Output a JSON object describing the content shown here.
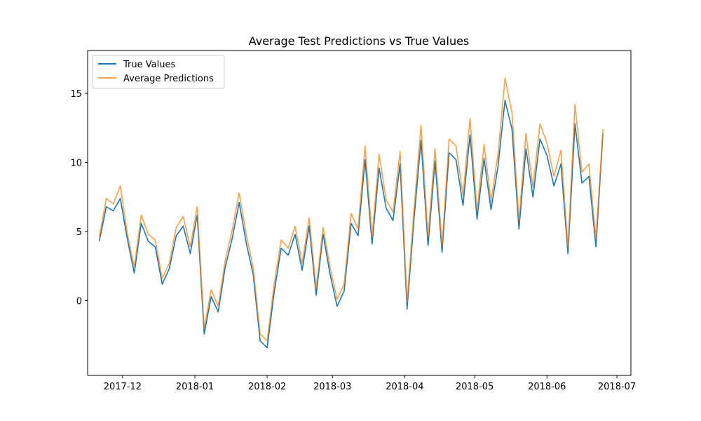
{
  "chart_data": {
    "type": "line",
    "title": "Average Test Predictions vs True Values",
    "xlabel": "",
    "ylabel": "",
    "x_axis_type": "date",
    "xlim": [
      "2017-11-16",
      "2018-07-07"
    ],
    "ylim": [
      -5.4,
      18.1
    ],
    "x_ticks": [
      "2017-12-01",
      "2018-01-01",
      "2018-02-01",
      "2018-03-01",
      "2018-04-01",
      "2018-05-01",
      "2018-06-01",
      "2018-07-01"
    ],
    "x_tick_labels": [
      "2017-12",
      "2018-01",
      "2018-02",
      "2018-03",
      "2018-04",
      "2018-05",
      "2018-06",
      "2018-07"
    ],
    "y_ticks": [
      0,
      5,
      10,
      15
    ],
    "y_tick_labels": [
      "0",
      "5",
      "10",
      "15"
    ],
    "grid": false,
    "legend_position": "top-left",
    "series": [
      {
        "name": "True Values",
        "color": "#1f77b4",
        "opacity": 1.0,
        "x": [
          "2017-11-21",
          "2017-11-24",
          "2017-11-27",
          "2017-11-30",
          "2017-12-03",
          "2017-12-06",
          "2017-12-09",
          "2017-12-12",
          "2017-12-15",
          "2017-12-18",
          "2017-12-21",
          "2017-12-24",
          "2017-12-27",
          "2017-12-30",
          "2018-01-02",
          "2018-01-05",
          "2018-01-08",
          "2018-01-11",
          "2018-01-14",
          "2018-01-17",
          "2018-01-20",
          "2018-01-23",
          "2018-01-26",
          "2018-01-29",
          "2018-02-01",
          "2018-02-04",
          "2018-02-07",
          "2018-02-10",
          "2018-02-13",
          "2018-02-16",
          "2018-02-19",
          "2018-02-22",
          "2018-02-25",
          "2018-02-28",
          "2018-03-03",
          "2018-03-06",
          "2018-03-09",
          "2018-03-12",
          "2018-03-15",
          "2018-03-18",
          "2018-03-21",
          "2018-03-24",
          "2018-03-27",
          "2018-03-30",
          "2018-04-02",
          "2018-04-05",
          "2018-04-08",
          "2018-04-11",
          "2018-04-14",
          "2018-04-17",
          "2018-04-20",
          "2018-04-23",
          "2018-04-26",
          "2018-04-29",
          "2018-05-02",
          "2018-05-05",
          "2018-05-08",
          "2018-05-11",
          "2018-05-14",
          "2018-05-17",
          "2018-05-20",
          "2018-05-23",
          "2018-05-26",
          "2018-05-29",
          "2018-06-01",
          "2018-06-04",
          "2018-06-07",
          "2018-06-10",
          "2018-06-13",
          "2018-06-16",
          "2018-06-19",
          "2018-06-22",
          "2018-06-25"
        ],
        "values": [
          4.3,
          6.8,
          6.5,
          7.4,
          4.5,
          2.0,
          5.6,
          4.3,
          3.9,
          1.2,
          2.3,
          4.7,
          5.4,
          3.4,
          6.2,
          -2.4,
          0.3,
          -0.8,
          2.4,
          4.5,
          7.1,
          4.2,
          1.9,
          -2.9,
          -3.4,
          0.6,
          3.8,
          3.3,
          4.8,
          2.2,
          5.4,
          0.4,
          4.8,
          1.9,
          -0.4,
          0.7,
          5.6,
          4.7,
          10.2,
          4.1,
          9.6,
          6.7,
          5.8,
          9.9,
          -0.6,
          6.0,
          11.6,
          4.0,
          10.1,
          3.5,
          10.7,
          10.2,
          6.9,
          12.0,
          5.9,
          10.3,
          6.6,
          9.7,
          14.5,
          12.4,
          5.2,
          11.0,
          7.5,
          11.7,
          10.5,
          8.3,
          9.9,
          3.4,
          12.8,
          8.5,
          9.0,
          3.9,
          12.1
        ]
      },
      {
        "name": "Average Predictions",
        "color": "#ff7f0e",
        "opacity": 0.75,
        "x": [
          "2017-11-21",
          "2017-11-24",
          "2017-11-27",
          "2017-11-30",
          "2017-12-03",
          "2017-12-06",
          "2017-12-09",
          "2017-12-12",
          "2017-12-15",
          "2017-12-18",
          "2017-12-21",
          "2017-12-24",
          "2017-12-27",
          "2017-12-30",
          "2018-01-02",
          "2018-01-05",
          "2018-01-08",
          "2018-01-11",
          "2018-01-14",
          "2018-01-17",
          "2018-01-20",
          "2018-01-23",
          "2018-01-26",
          "2018-01-29",
          "2018-02-01",
          "2018-02-04",
          "2018-02-07",
          "2018-02-10",
          "2018-02-13",
          "2018-02-16",
          "2018-02-19",
          "2018-02-22",
          "2018-02-25",
          "2018-02-28",
          "2018-03-03",
          "2018-03-06",
          "2018-03-09",
          "2018-03-12",
          "2018-03-15",
          "2018-03-18",
          "2018-03-21",
          "2018-03-24",
          "2018-03-27",
          "2018-03-30",
          "2018-04-02",
          "2018-04-05",
          "2018-04-08",
          "2018-04-11",
          "2018-04-14",
          "2018-04-17",
          "2018-04-20",
          "2018-04-23",
          "2018-04-26",
          "2018-04-29",
          "2018-05-02",
          "2018-05-05",
          "2018-05-08",
          "2018-05-11",
          "2018-05-14",
          "2018-05-17",
          "2018-05-20",
          "2018-05-23",
          "2018-05-26",
          "2018-05-29",
          "2018-06-01",
          "2018-06-04",
          "2018-06-07",
          "2018-06-10",
          "2018-06-13",
          "2018-06-16",
          "2018-06-19",
          "2018-06-22",
          "2018-06-25"
        ],
        "values": [
          4.6,
          7.4,
          7.0,
          8.3,
          4.9,
          2.4,
          6.2,
          4.8,
          4.4,
          1.6,
          2.7,
          5.3,
          6.1,
          3.9,
          6.8,
          -2.0,
          0.8,
          -0.4,
          2.9,
          5.1,
          7.8,
          4.8,
          2.4,
          -2.4,
          -2.9,
          1.2,
          4.4,
          3.8,
          5.4,
          2.7,
          6.0,
          0.9,
          5.3,
          2.4,
          0.1,
          1.2,
          6.3,
          5.2,
          11.2,
          4.6,
          10.6,
          7.3,
          6.4,
          10.8,
          -0.1,
          6.7,
          12.7,
          4.6,
          11.0,
          4.0,
          11.7,
          11.2,
          7.6,
          13.2,
          6.5,
          11.3,
          7.2,
          10.6,
          16.1,
          13.6,
          5.8,
          12.1,
          8.2,
          12.8,
          11.4,
          9.0,
          10.9,
          3.9,
          14.2,
          9.3,
          9.9,
          4.5,
          12.4
        ]
      }
    ]
  }
}
